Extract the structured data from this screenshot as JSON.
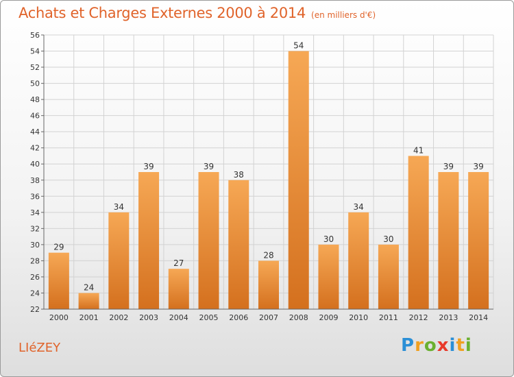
{
  "title": "Achats et Charges Externes 2000 à 2014",
  "subtitle": "(en milliers d'€)",
  "commune": "LIéZEY",
  "logo": {
    "letters": [
      "P",
      "r",
      "o",
      "x",
      "i",
      "t",
      "i"
    ],
    "colors": [
      "#2a8fd6",
      "#f0a020",
      "#6ab030",
      "#e83a2a",
      "#2a8fd6",
      "#f0a020",
      "#6ab030"
    ]
  },
  "colors": {
    "bar_top": "#f6a855",
    "bar_bottom": "#d4701e",
    "title": "#e0632a"
  },
  "chart_data": {
    "type": "bar",
    "categories": [
      "2000",
      "2001",
      "2002",
      "2003",
      "2004",
      "2005",
      "2006",
      "2007",
      "2008",
      "2009",
      "2010",
      "2011",
      "2012",
      "2013",
      "2014"
    ],
    "values": [
      29,
      24,
      34,
      39,
      27,
      39,
      38,
      28,
      54,
      30,
      34,
      30,
      41,
      39,
      39
    ],
    "ylim": [
      22,
      56
    ],
    "yticks": [
      22,
      24,
      26,
      28,
      30,
      32,
      34,
      36,
      38,
      40,
      42,
      44,
      46,
      48,
      50,
      52,
      54,
      56
    ],
    "grid": true,
    "data_labels": true
  }
}
